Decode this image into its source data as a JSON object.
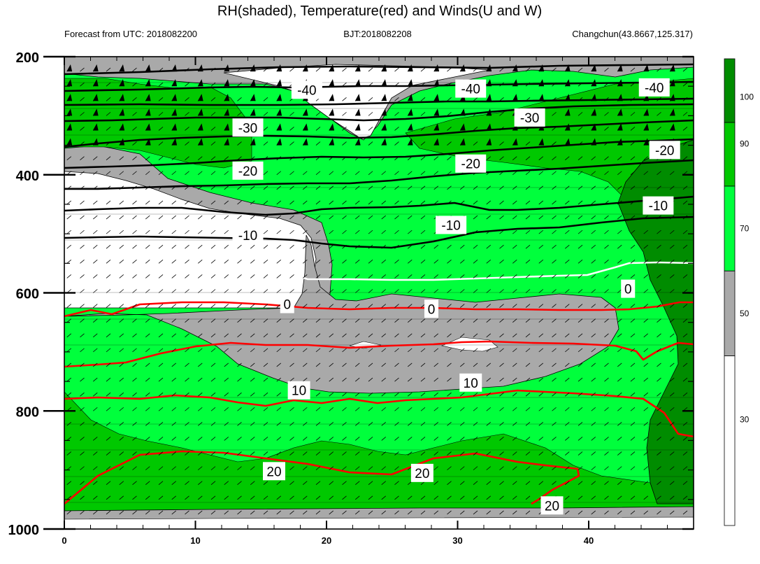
{
  "chart_data": {
    "type": "heatmap",
    "title": "RH(shaded), Temperature(red) and Winds(U and W)",
    "left_subtitle": "Forecast from UTC: 2018082200",
    "center_subtitle": "BJT:2018082208",
    "right_subtitle": "Changchun(43.8667,125.317)",
    "x_ticks": [
      "0",
      "10",
      "20",
      "30",
      "40"
    ],
    "x_range": [
      0,
      48
    ],
    "y_ticks": [
      "200",
      "400",
      "600",
      "800",
      "1000"
    ],
    "y_range": [
      200,
      1000
    ],
    "colorbar": {
      "labels": [
        "30",
        "50",
        "70",
        "90",
        "100"
      ],
      "levels": [
        {
          "from": 0,
          "to": 40,
          "color": "#ffffff"
        },
        {
          "from": 40,
          "to": 60,
          "color": "#a9a9a9"
        },
        {
          "from": 60,
          "to": 80,
          "color": "#00ff3c"
        },
        {
          "from": 80,
          "to": 95,
          "color": "#00c800"
        },
        {
          "from": 95,
          "to": 110,
          "color": "#008c00"
        }
      ]
    },
    "black_contour_labels": [
      {
        "text": "-40",
        "x": 18.5,
        "y": 256
      },
      {
        "text": "-40",
        "x": 31.0,
        "y": 254
      },
      {
        "text": "-40",
        "x": 45.0,
        "y": 252
      },
      {
        "text": "-30",
        "x": 14.0,
        "y": 320
      },
      {
        "text": "-30",
        "x": 35.5,
        "y": 303
      },
      {
        "text": "-20",
        "x": 14.0,
        "y": 393
      },
      {
        "text": "-20",
        "x": 31.0,
        "y": 381
      },
      {
        "text": "-20",
        "x": 45.8,
        "y": 358
      },
      {
        "text": "-10",
        "x": 14.0,
        "y": 502
      },
      {
        "text": "-10",
        "x": 29.5,
        "y": 485
      },
      {
        "text": "-10",
        "x": 45.3,
        "y": 452
      }
    ],
    "white_contour_labels": [
      {
        "text": "0",
        "x": 17.0,
        "y": 619
      },
      {
        "text": "0",
        "x": 28.0,
        "y": 627
      },
      {
        "text": "0",
        "x": 43.0,
        "y": 593
      }
    ],
    "red_contour_labels": [
      {
        "text": "10",
        "x": 17.9,
        "y": 765
      },
      {
        "text": "10",
        "x": 31.0,
        "y": 752
      },
      {
        "text": "20",
        "x": 16.0,
        "y": 902
      },
      {
        "text": "20",
        "x": 27.3,
        "y": 905
      },
      {
        "text": "20",
        "x": 37.2,
        "y": 960
      }
    ]
  }
}
